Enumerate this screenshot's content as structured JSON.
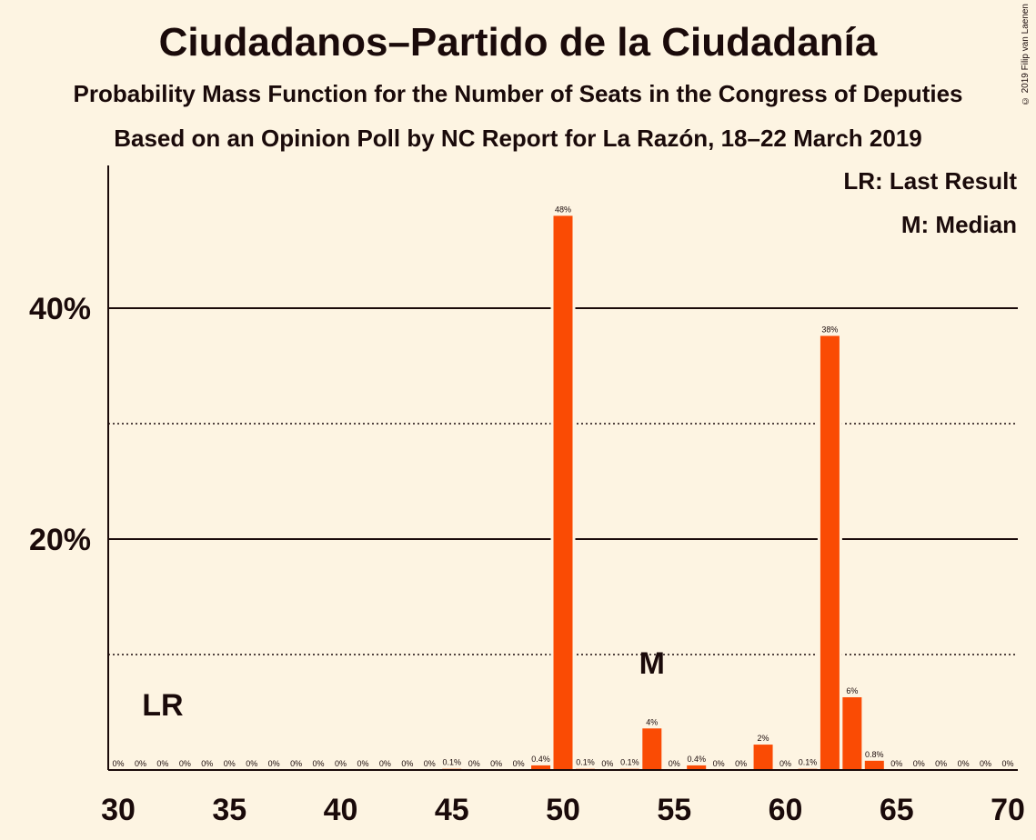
{
  "title": "Ciudadanos–Partido de la Ciudadanía",
  "subtitle": "Probability Mass Function for the Number of Seats in the Congress of Deputies",
  "subtitle2": "Based on an Opinion Poll by NC Report for La Razón, 18–22 March 2019",
  "copyright": "© 2019 Filip van Laenen",
  "legend": {
    "last_result": "LR: Last Result",
    "median": "M: Median"
  },
  "colors": {
    "background": "#fdf4e2",
    "bar": "#fa4b04",
    "text": "#1a0a0a"
  },
  "chart_data": {
    "type": "bar",
    "x": [
      30,
      31,
      32,
      33,
      34,
      35,
      36,
      37,
      38,
      39,
      40,
      41,
      42,
      43,
      44,
      45,
      46,
      47,
      48,
      49,
      50,
      51,
      52,
      53,
      54,
      55,
      56,
      57,
      58,
      59,
      60,
      61,
      62,
      63,
      64,
      65,
      66,
      67,
      68,
      69,
      70
    ],
    "values": [
      0,
      0,
      0,
      0,
      0,
      0,
      0,
      0,
      0,
      0,
      0,
      0,
      0,
      0,
      0,
      0.1,
      0,
      0,
      0,
      0.4,
      48,
      0.1,
      0,
      0.1,
      3.6,
      0,
      0.4,
      0,
      0,
      2.2,
      0,
      0.1,
      37.6,
      6.3,
      0.8,
      0,
      0,
      0,
      0,
      0,
      0
    ],
    "labels": [
      "0%",
      "0%",
      "0%",
      "0%",
      "0%",
      "0%",
      "0%",
      "0%",
      "0%",
      "0%",
      "0%",
      "0%",
      "0%",
      "0%",
      "0%",
      "0.1%",
      "0%",
      "0%",
      "0%",
      "0.4%",
      "48%",
      "0.1%",
      "0%",
      "0.1%",
      "4%",
      "0%",
      "0.4%",
      "0%",
      "0%",
      "2%",
      "0%",
      "0.1%",
      "38%",
      "6%",
      "0.8%",
      "0%",
      "0%",
      "0%",
      "0%",
      "0%",
      "0%"
    ],
    "x_ticks": [
      30,
      35,
      40,
      45,
      50,
      55,
      60,
      65,
      70
    ],
    "y_ticks": [
      {
        "value": 20,
        "label": "20%"
      },
      {
        "value": 40,
        "label": "40%"
      }
    ],
    "minor_y_ticks": [
      10,
      30
    ],
    "ylim": [
      0,
      52
    ],
    "xlim": [
      30,
      70
    ],
    "last_result": {
      "seat": 32,
      "label": "LR"
    },
    "median": {
      "seat": 54,
      "label": "M"
    }
  }
}
